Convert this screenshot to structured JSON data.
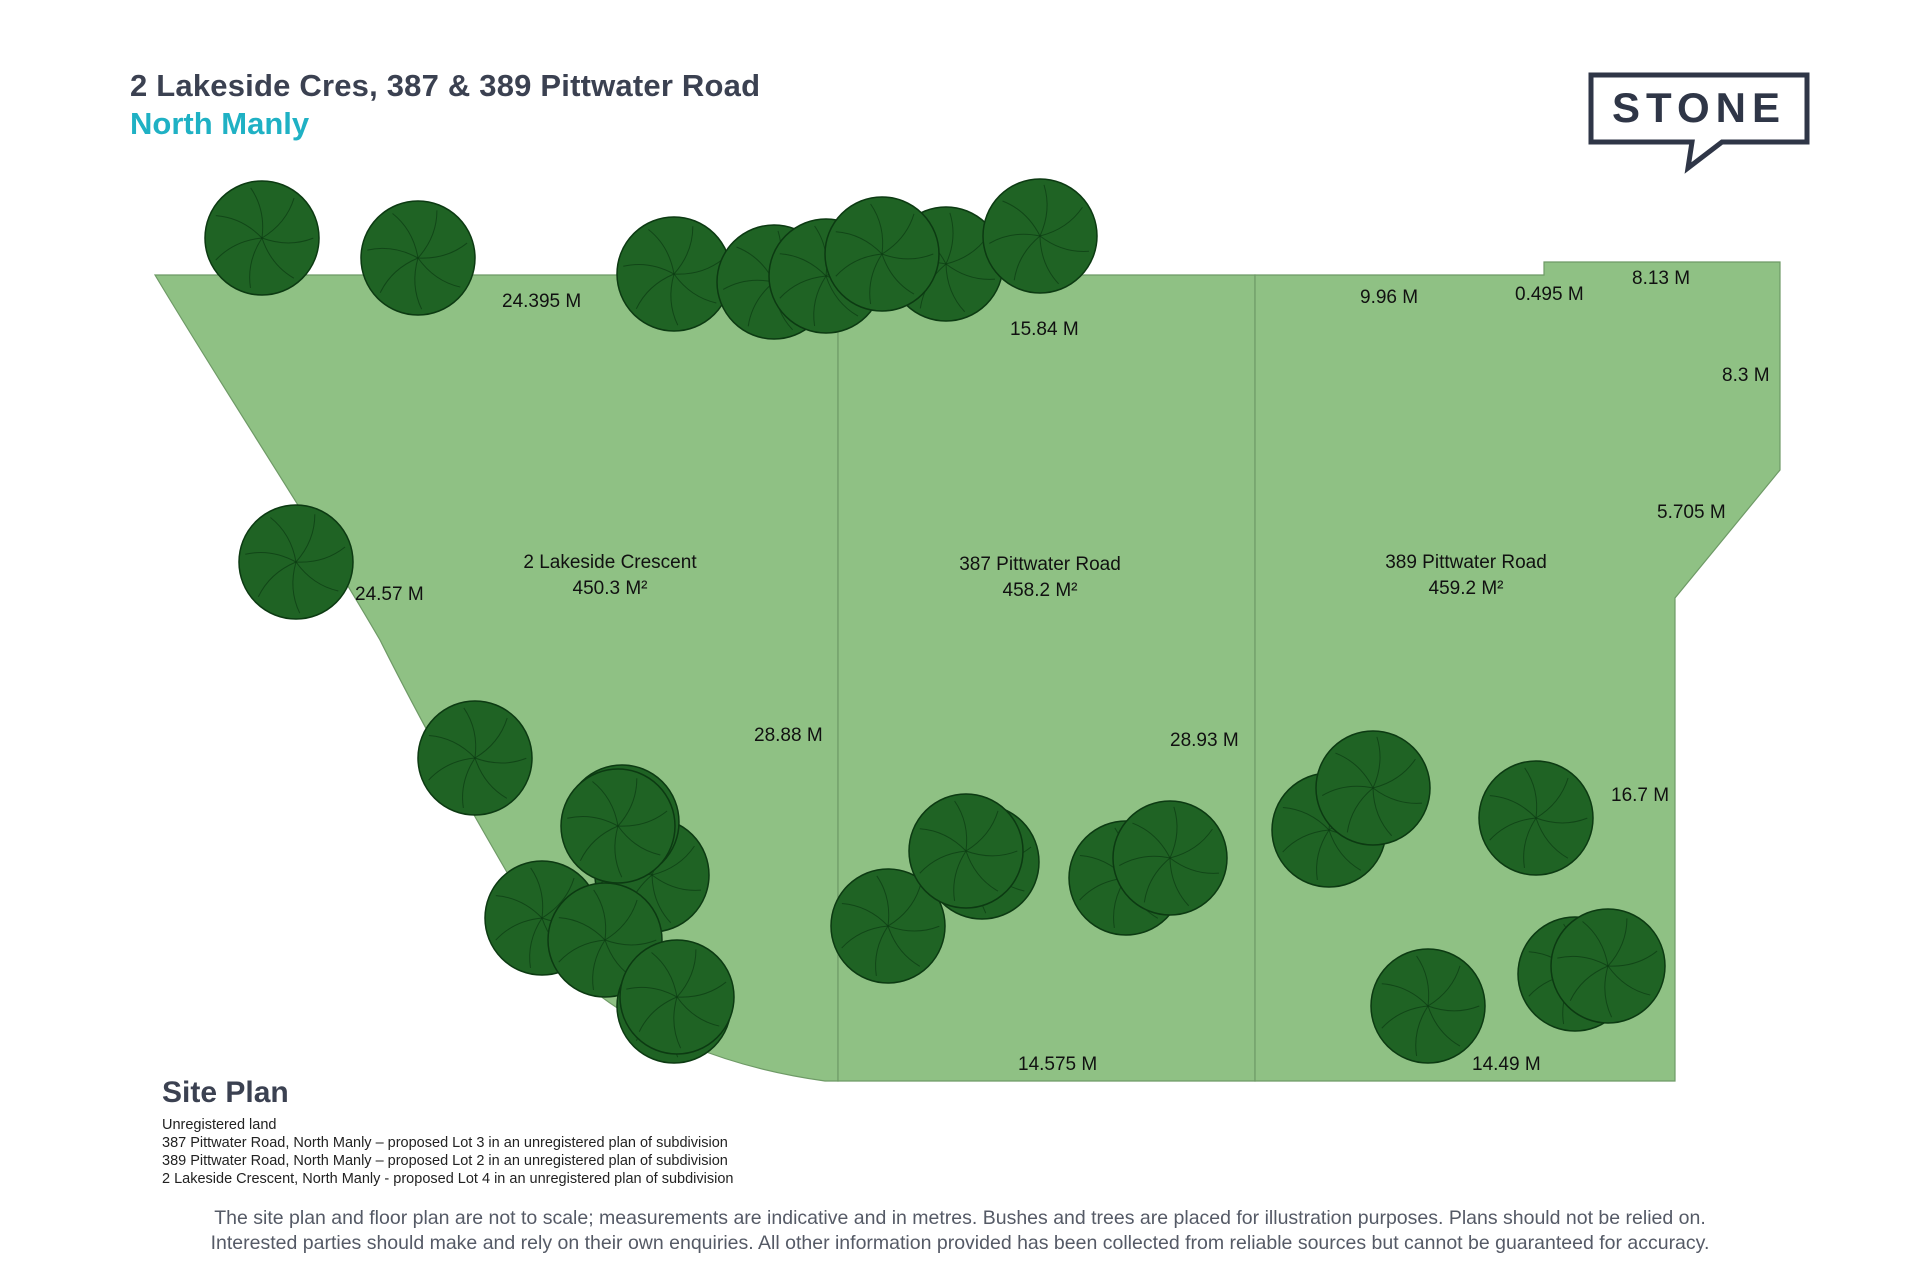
{
  "header": {
    "title": "2 Lakeside Cres, 387 & 389 Pittwater Road",
    "suburb": "North Manly"
  },
  "logo": {
    "text": "STONE",
    "color": "#2f3647"
  },
  "colors": {
    "lot_fill": "#8fc184",
    "lot_border": "#6e9a66",
    "tree_fill": "#1f6324",
    "tree_stroke": "#0c3a12",
    "accent": "#1fb1c4"
  },
  "lots": [
    {
      "name": "2 Lakeside Crescent",
      "area": "450.3 M²"
    },
    {
      "name": "387 Pittwater Road",
      "area": "458.2 M²"
    },
    {
      "name": "389 Pittwater Road",
      "area": "459.2 M²"
    }
  ],
  "dimensions": {
    "lot1_top": "24.395 M",
    "lot1_diag": "24.57 M",
    "lot1_right": "28.88 M",
    "lot2_top": "15.84 M",
    "lot2_right": "28.93 M",
    "lot2_bottom": "14.575 M",
    "lot3_top": "9.96 M",
    "lot3_step": "0.495 M",
    "lot3_top_right": "8.13 M",
    "lot3_right_upper": "8.3 M",
    "lot3_diag": "5.705 M",
    "lot3_right_lower": "16.7 M",
    "lot3_bottom": "14.49 M"
  },
  "site_plan": {
    "heading": "Site Plan",
    "legend": [
      "Unregistered land",
      "387 Pittwater Road, North Manly – proposed Lot 3 in an unregistered plan of subdivision",
      "389 Pittwater Road, North Manly – proposed Lot 2 in an unregistered plan of subdivision",
      "2 Lakeside Crescent, North Manly - proposed Lot 4 in an unregistered plan of subdivision"
    ]
  },
  "disclaimer": [
    "The site plan and floor plan are not to scale; measurements are indicative and in metres. Bushes and trees are placed for illustration purposes. Plans should not be relied on.",
    "Interested parties should make and rely on their own enquiries.  All other information provided has been collected from reliable sources but cannot be guaranteed for accuracy."
  ]
}
